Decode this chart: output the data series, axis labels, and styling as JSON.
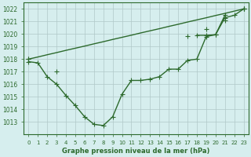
{
  "x": [
    0,
    1,
    2,
    3,
    4,
    5,
    6,
    7,
    8,
    9,
    10,
    11,
    12,
    13,
    14,
    15,
    16,
    17,
    18,
    19,
    20,
    21,
    22,
    23
  ],
  "line_straight": [
    1018.0,
    1018.17,
    1018.35,
    1018.52,
    1018.7,
    1018.87,
    1019.04,
    1019.22,
    1019.39,
    1019.57,
    1019.74,
    1019.91,
    1020.09,
    1020.26,
    1020.43,
    1020.61,
    1020.78,
    1020.96,
    1021.13,
    1021.3,
    1021.48,
    1021.65,
    1021.83,
    1022.0
  ],
  "line_upper": [
    1018.0,
    null,
    null,
    null,
    null,
    null,
    null,
    null,
    null,
    null,
    null,
    null,
    null,
    null,
    null,
    null,
    null,
    null,
    1019.9,
    1019.9,
    1019.95,
    1021.5,
    null,
    1022.0
  ],
  "line_mid": [
    1018.0,
    null,
    null,
    1017.0,
    null,
    null,
    null,
    null,
    null,
    null,
    null,
    null,
    null,
    null,
    null,
    null,
    null,
    1019.85,
    null,
    1020.4,
    null,
    1021.1,
    null,
    1022.0
  ],
  "line_lower": [
    1017.8,
    1017.7,
    1016.6,
    1016.0,
    1015.1,
    1014.3,
    1013.4,
    1012.8,
    1012.7,
    1013.4,
    1015.2,
    1016.3,
    1016.3,
    1016.4,
    1016.6,
    1017.2,
    1017.2,
    1017.9,
    1018.0,
    1019.8,
    1019.95,
    1021.3,
    1021.5,
    1022.0
  ],
  "ylim": [
    1012.0,
    1022.5
  ],
  "xlim": [
    -0.5,
    23.5
  ],
  "yticks": [
    1013,
    1014,
    1015,
    1016,
    1017,
    1018,
    1019,
    1020,
    1021,
    1022
  ],
  "xticks": [
    0,
    1,
    2,
    3,
    4,
    5,
    6,
    7,
    8,
    9,
    10,
    11,
    12,
    13,
    14,
    15,
    16,
    17,
    18,
    19,
    20,
    21,
    22,
    23
  ],
  "xlabel": "Graphe pression niveau de la mer (hPa)",
  "line_color": "#2d6a2d",
  "bg_color": "#d6eeee",
  "grid_color": "#b0c8c8",
  "marker": "+",
  "marker_size": 4,
  "linewidth": 1.0
}
